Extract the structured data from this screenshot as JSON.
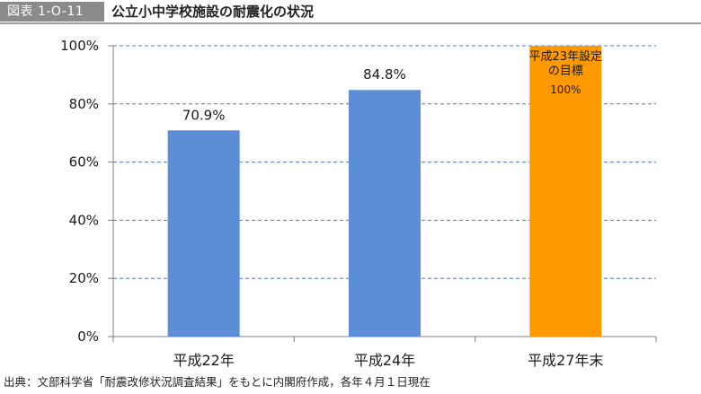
{
  "header": {
    "figure_number": "図表 1-O-11",
    "title": "公立小中学校施設の耐震化の状況"
  },
  "chart_data": {
    "type": "bar",
    "categories": [
      "平成22年",
      "平成24年",
      "平成27年末"
    ],
    "values": [
      70.9,
      84.8,
      100
    ],
    "value_labels": [
      "70.9%",
      "84.8%",
      ""
    ],
    "target_annotation": [
      "平成23年設定",
      "の目標",
      "100%"
    ],
    "ylim": [
      0,
      100
    ],
    "yticks": [
      "0%",
      "20%",
      "40%",
      "60%",
      "80%",
      "100%"
    ],
    "grid": "horizontal-dashed",
    "xlabel": "",
    "ylabel": "",
    "colors": {
      "actual": "#5b8ed6",
      "target": "#ff9900",
      "grid": "#4a7bbd",
      "axis": "#808080"
    }
  },
  "source_note": "出典：文部科学省「耐震改修状況調査結果」をもとに内閣府作成，各年４月１日現在"
}
